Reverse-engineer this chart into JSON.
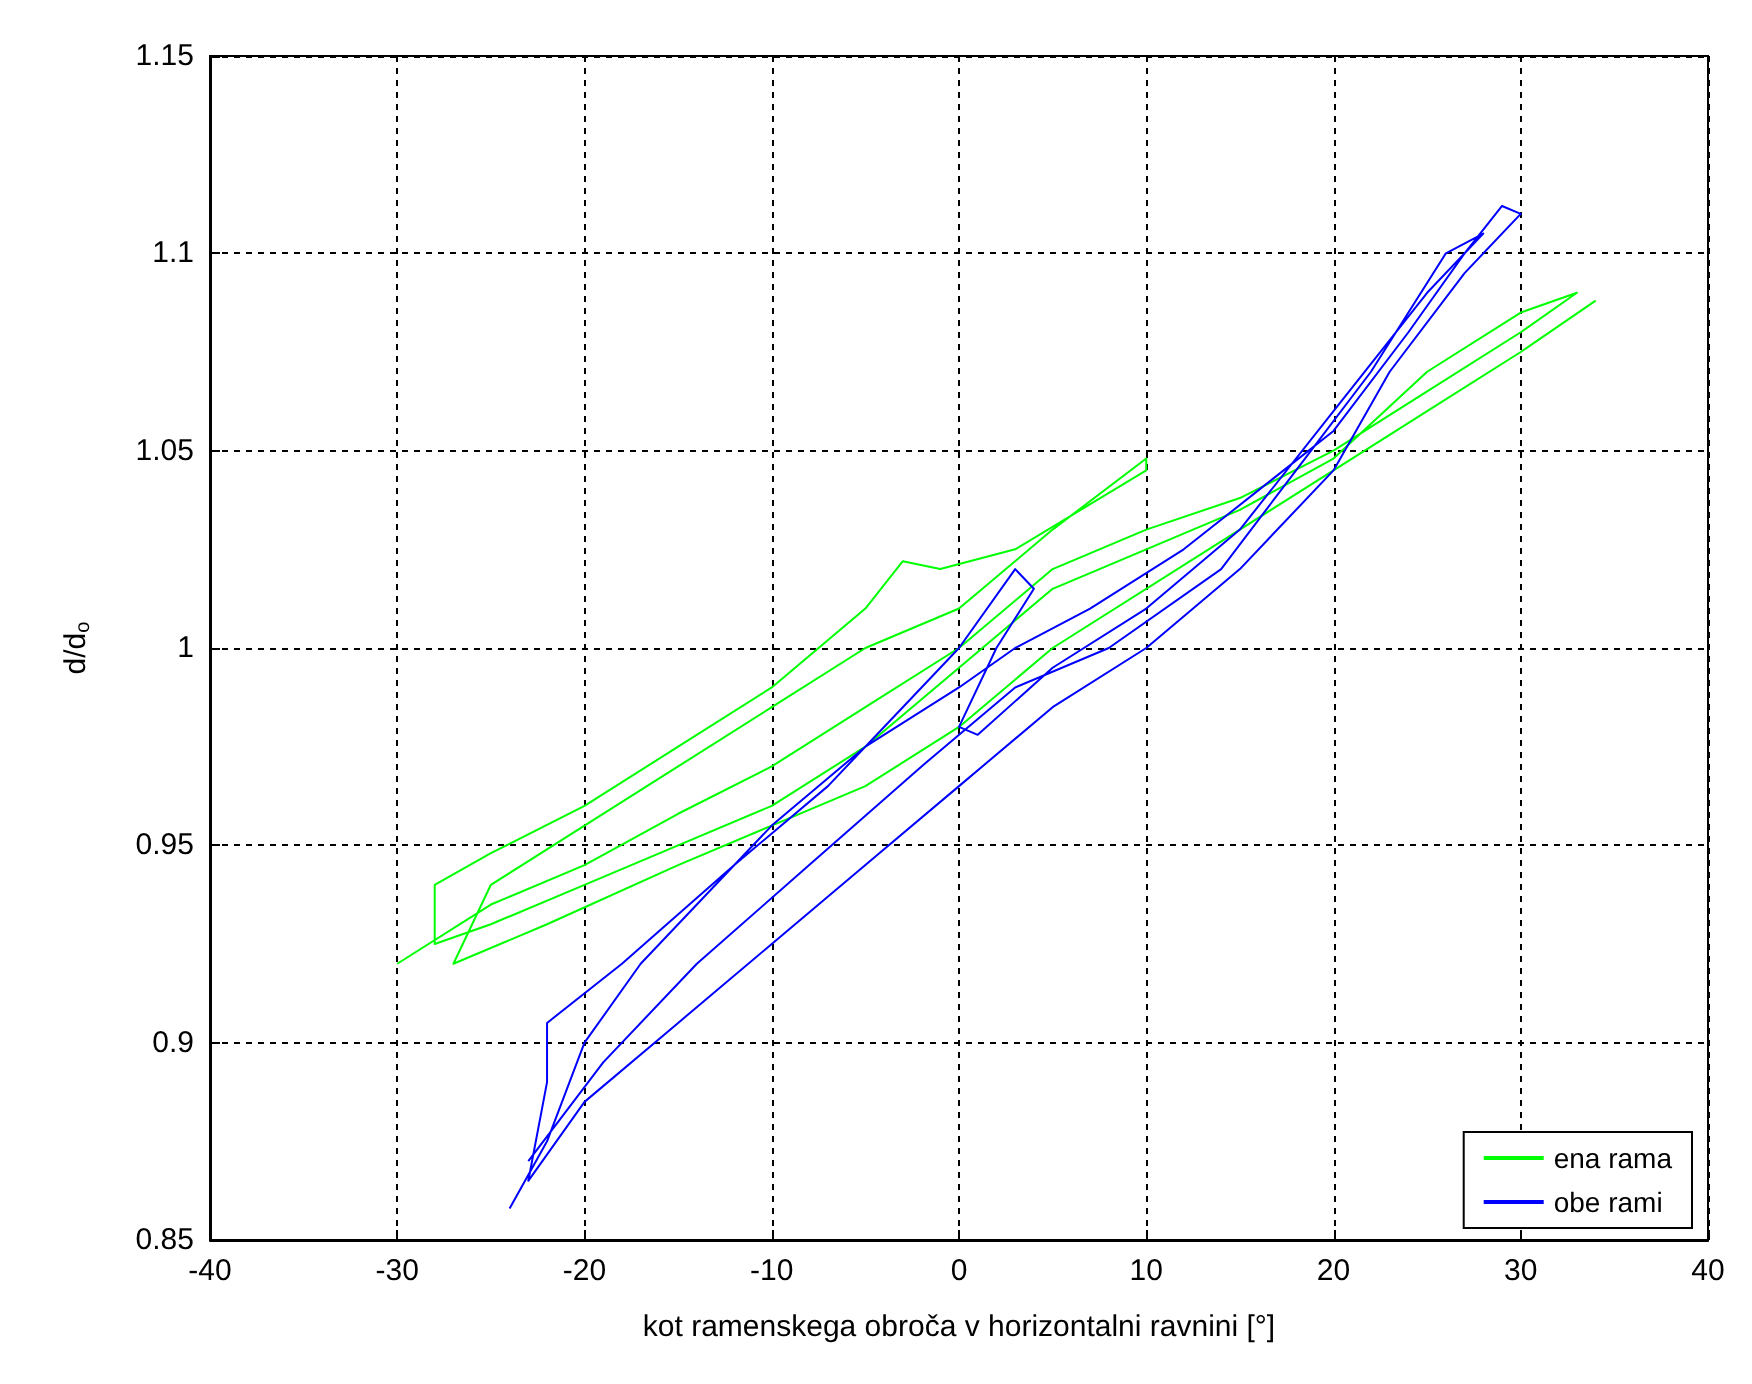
{
  "chart_data": {
    "type": "line",
    "xlabel": "kot ramenskega obroča v horizontalni ravnini [°]",
    "ylabel": "d/d$_{o}$",
    "xlim": [
      -40,
      40
    ],
    "xticks": [
      -40,
      -30,
      -20,
      -10,
      0,
      10,
      20,
      30,
      40
    ],
    "ylim": [
      0.85,
      1.15
    ],
    "yticks": [
      0.85,
      0.9,
      0.95,
      1,
      1.05,
      1.1,
      1.15
    ],
    "grid": true,
    "legend": "bottom right",
    "line_style": "solid",
    "marker": "none",
    "series": [
      {
        "name": "ena rama",
        "color": "#00ff00",
        "x": [
          -30,
          -25,
          -20,
          -15,
          -10,
          -5,
          0,
          5,
          10,
          15,
          20,
          25,
          30,
          33,
          30,
          25,
          20,
          15,
          10,
          5,
          0,
          -5,
          -10,
          -15,
          -20,
          -25,
          -28,
          -28,
          -25,
          -20,
          -15,
          -10,
          -5,
          -3,
          -1,
          3,
          10,
          10,
          5,
          0,
          -5,
          -10,
          -15,
          -20,
          -25,
          -27,
          -22,
          -15,
          -10,
          -5,
          0,
          5,
          15,
          20,
          25,
          30,
          34
        ],
        "values": [
          0.92,
          0.935,
          0.945,
          0.958,
          0.97,
          0.985,
          1.0,
          1.02,
          1.03,
          1.038,
          1.05,
          1.065,
          1.08,
          1.09,
          1.085,
          1.07,
          1.048,
          1.035,
          1.025,
          1.015,
          0.995,
          0.975,
          0.96,
          0.95,
          0.94,
          0.93,
          0.925,
          0.94,
          0.948,
          0.96,
          0.975,
          0.99,
          1.01,
          1.022,
          1.02,
          1.025,
          1.045,
          1.048,
          1.03,
          1.01,
          1.0,
          0.985,
          0.97,
          0.955,
          0.94,
          0.92,
          0.93,
          0.945,
          0.955,
          0.965,
          0.98,
          1.0,
          1.03,
          1.045,
          1.06,
          1.075,
          1.088
        ]
      },
      {
        "name": "obe rami",
        "color": "#0000ff",
        "x": [
          -24,
          -22,
          -20,
          -17,
          -13,
          -10,
          -5,
          0,
          3,
          7,
          12,
          16,
          20,
          24,
          27,
          29,
          30,
          27,
          23,
          20,
          15,
          10,
          5,
          0,
          -5,
          -10,
          -15,
          -20,
          -23,
          -22,
          -22,
          -18,
          -12,
          -7,
          -3,
          0,
          3,
          4,
          2,
          0,
          1,
          5,
          10,
          15,
          20,
          25,
          28,
          26,
          22,
          18,
          14,
          8,
          3,
          -2,
          -8,
          -14,
          -19,
          -23
        ],
        "values": [
          0.858,
          0.875,
          0.9,
          0.92,
          0.94,
          0.955,
          0.975,
          0.99,
          1.0,
          1.01,
          1.025,
          1.04,
          1.055,
          1.08,
          1.1,
          1.112,
          1.11,
          1.095,
          1.07,
          1.045,
          1.02,
          1.0,
          0.985,
          0.965,
          0.945,
          0.925,
          0.905,
          0.885,
          0.865,
          0.89,
          0.905,
          0.92,
          0.945,
          0.965,
          0.985,
          1.0,
          1.02,
          1.015,
          1.0,
          0.98,
          0.978,
          0.995,
          1.01,
          1.03,
          1.06,
          1.09,
          1.105,
          1.1,
          1.07,
          1.045,
          1.02,
          1.0,
          0.99,
          0.97,
          0.945,
          0.92,
          0.895,
          0.87
        ]
      }
    ]
  }
}
